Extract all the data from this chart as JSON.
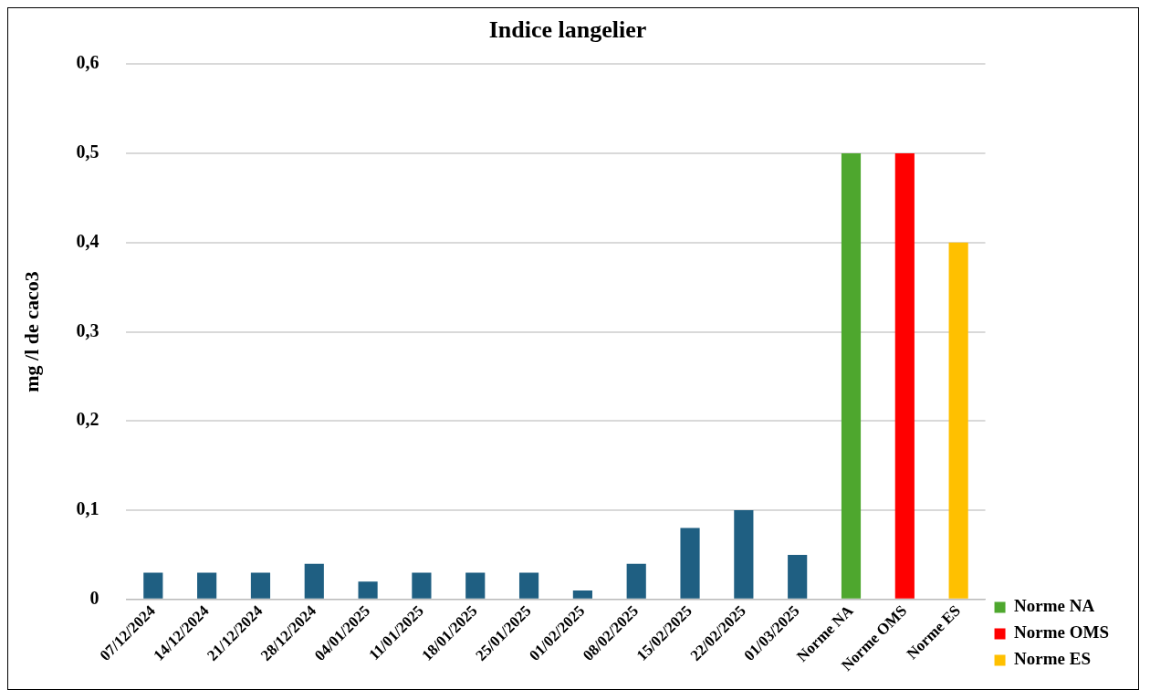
{
  "chart_data": {
    "type": "bar",
    "title": "Indice langelier",
    "ylabel": "mg /l de caco3",
    "categories": [
      "07/12/2024",
      "14/12/2024",
      "21/12/2024",
      "28/12/2024",
      "04/01/2025",
      "11/01/2025",
      "18/01/2025",
      "25/01/2025",
      "01/02/2025",
      "08/02/2025",
      "15/02/2025",
      "22/02/2025",
      "01/03/2025",
      "Norme NA",
      "Norme OMS",
      "Norme ES"
    ],
    "series": [
      {
        "color": "#1f5f82",
        "values": [
          0.03,
          0.03,
          0.03,
          0.04,
          0.02,
          0.03,
          0.03,
          0.03,
          0.01,
          0.04,
          0.08,
          0.1,
          0.05,
          null,
          null,
          null
        ]
      },
      {
        "name": "Norme NA",
        "color": "#4ea72e",
        "values": [
          null,
          null,
          null,
          null,
          null,
          null,
          null,
          null,
          null,
          null,
          null,
          null,
          null,
          0.5,
          null,
          null
        ]
      },
      {
        "name": "Norme OMS",
        "color": "#ff0000",
        "values": [
          null,
          null,
          null,
          null,
          null,
          null,
          null,
          null,
          null,
          null,
          null,
          null,
          null,
          null,
          0.5,
          null
        ]
      },
      {
        "name": "Norme ES",
        "color": "#ffc000",
        "values": [
          null,
          null,
          null,
          null,
          null,
          null,
          null,
          null,
          null,
          null,
          null,
          null,
          null,
          null,
          null,
          0.4
        ]
      }
    ],
    "ylim": [
      0,
      0.6
    ],
    "yticks": [
      0,
      {
        "value": 0.1,
        "label": "0,1"
      },
      {
        "value": 0.2,
        "label": "0,2"
      },
      {
        "value": 0.3,
        "label": "0,3"
      },
      {
        "value": 0.4,
        "label": "0,4"
      },
      {
        "value": 0.5,
        "label": "0,5"
      },
      {
        "value": 0.6,
        "label": "0,6"
      }
    ],
    "grid": "y",
    "legend": "bottom right"
  }
}
